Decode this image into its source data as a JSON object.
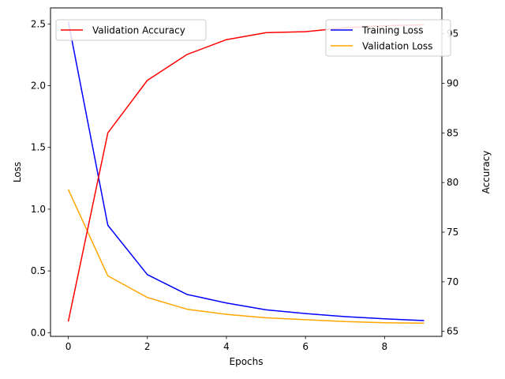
{
  "chart_data": {
    "type": "line",
    "x": [
      0,
      1,
      2,
      3,
      4,
      5,
      6,
      7,
      8,
      9
    ],
    "xlabel": "Epochs",
    "xlim": [
      -0.45,
      9.45
    ],
    "xticks": [
      0,
      2,
      4,
      6,
      8
    ],
    "left_axis": {
      "label": "Loss",
      "ylim": [
        -0.03,
        2.63
      ],
      "ticks": [
        0.0,
        0.5,
        1.0,
        1.5,
        2.0,
        2.5
      ],
      "tick_labels": [
        "0.0",
        "0.5",
        "1.0",
        "1.5",
        "2.0",
        "2.5"
      ]
    },
    "right_axis": {
      "label": "Accuracy",
      "ylim": [
        64.5,
        97.6
      ],
      "ticks": [
        65,
        70,
        75,
        80,
        85,
        90,
        95
      ],
      "tick_labels": [
        "65",
        "70",
        "75",
        "80",
        "85",
        "90",
        "95"
      ]
    },
    "series": [
      {
        "name": "Training Loss",
        "axis": "left",
        "color": "#0000ff",
        "values": [
          2.52,
          0.87,
          0.47,
          0.31,
          0.24,
          0.185,
          0.155,
          0.13,
          0.112,
          0.098
        ]
      },
      {
        "name": "Validation Loss",
        "axis": "left",
        "color": "#ffa500",
        "values": [
          1.16,
          0.46,
          0.285,
          0.19,
          0.148,
          0.12,
          0.105,
          0.09,
          0.08,
          0.077
        ]
      },
      {
        "name": "Validation Accuracy",
        "axis": "right",
        "color": "#ff0000",
        "values": [
          66.0,
          85.0,
          90.3,
          92.9,
          94.4,
          95.1,
          95.2,
          95.6,
          95.8,
          95.9
        ]
      }
    ],
    "legends": [
      {
        "placement": "upper-left",
        "entries": [
          "Validation Accuracy"
        ]
      },
      {
        "placement": "upper-right",
        "entries": [
          "Training Loss",
          "Validation Loss"
        ]
      }
    ],
    "grid": false
  }
}
